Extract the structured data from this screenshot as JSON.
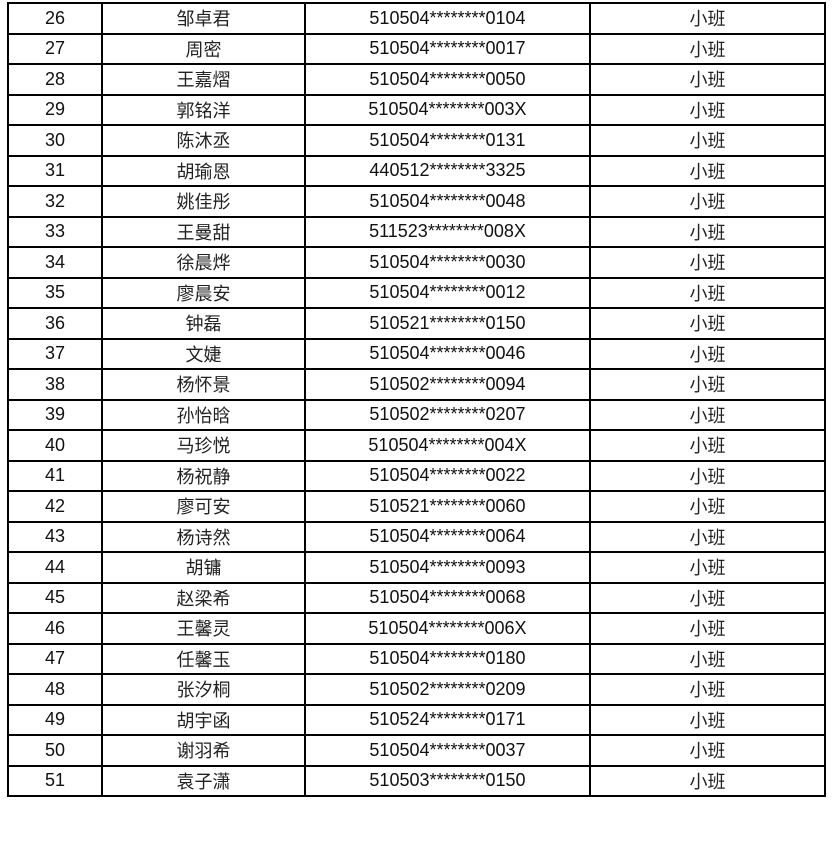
{
  "table": {
    "rows": [
      {
        "no": "26",
        "name": "邹卓君",
        "id": "510504********0104",
        "class": "小班"
      },
      {
        "no": "27",
        "name": "周密",
        "id": "510504********0017",
        "class": "小班"
      },
      {
        "no": "28",
        "name": "王嘉熠",
        "id": "510504********0050",
        "class": "小班"
      },
      {
        "no": "29",
        "name": "郭铭洋",
        "id": "510504********003X",
        "class": "小班"
      },
      {
        "no": "30",
        "name": "陈沐丞",
        "id": "510504********0131",
        "class": "小班"
      },
      {
        "no": "31",
        "name": "胡瑜恩",
        "id": "440512********3325",
        "class": "小班"
      },
      {
        "no": "32",
        "name": "姚佳彤",
        "id": "510504********0048",
        "class": "小班"
      },
      {
        "no": "33",
        "name": "王曼甜",
        "id": "511523********008X",
        "class": "小班"
      },
      {
        "no": "34",
        "name": "徐晨烨",
        "id": "510504********0030",
        "class": "小班"
      },
      {
        "no": "35",
        "name": "廖晨安",
        "id": "510504********0012",
        "class": "小班"
      },
      {
        "no": "36",
        "name": "钟磊",
        "id": "510521********0150",
        "class": "小班"
      },
      {
        "no": "37",
        "name": "文婕",
        "id": "510504********0046",
        "class": "小班"
      },
      {
        "no": "38",
        "name": "杨怀景",
        "id": "510502********0094",
        "class": "小班"
      },
      {
        "no": "39",
        "name": "孙怡晗",
        "id": "510502********0207",
        "class": "小班"
      },
      {
        "no": "40",
        "name": "马珍悦",
        "id": "510504********004X",
        "class": "小班"
      },
      {
        "no": "41",
        "name": "杨祝静",
        "id": "510504********0022",
        "class": "小班"
      },
      {
        "no": "42",
        "name": "廖可安",
        "id": "510521********0060",
        "class": "小班"
      },
      {
        "no": "43",
        "name": "杨诗然",
        "id": "510504********0064",
        "class": "小班"
      },
      {
        "no": "44",
        "name": "胡镛",
        "id": "510504********0093",
        "class": "小班"
      },
      {
        "no": "45",
        "name": "赵梁希",
        "id": "510504********0068",
        "class": "小班"
      },
      {
        "no": "46",
        "name": "王馨灵",
        "id": "510504********006X",
        "class": "小班"
      },
      {
        "no": "47",
        "name": "任馨玉",
        "id": "510504********0180",
        "class": "小班"
      },
      {
        "no": "48",
        "name": "张汐桐",
        "id": "510502********0209",
        "class": "小班"
      },
      {
        "no": "49",
        "name": "胡宇函",
        "id": "510524********0171",
        "class": "小班"
      },
      {
        "no": "50",
        "name": "谢羽希",
        "id": "510504********0037",
        "class": "小班"
      },
      {
        "no": "51",
        "name": "袁子潇",
        "id": "510503********0150",
        "class": "小班"
      }
    ]
  }
}
